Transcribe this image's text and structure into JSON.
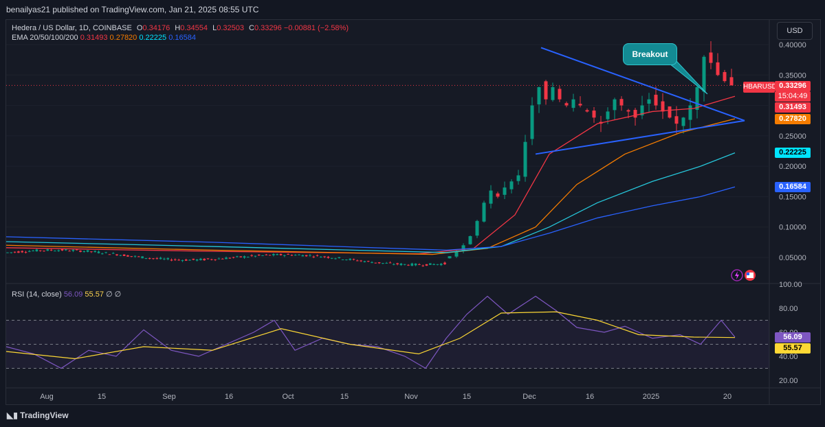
{
  "header": {
    "publisher": "benailyas21 published on TradingView.com, Jan 21, 2025 08:55 UTC"
  },
  "legend": {
    "symbol": "Hedera / US Dollar, 1D, COINBASE",
    "o_label": "O",
    "o_value": "0.34176",
    "h_label": "H",
    "h_value": "0.34554",
    "l_label": "L",
    "l_value": "0.32503",
    "c_label": "C",
    "c_value": "0.33296",
    "change": "−0.00881 (−2.58%)",
    "ema_label": "EMA 20/50/100/200",
    "ema20": "0.31493",
    "ema50": "0.27820",
    "ema100": "0.22225",
    "ema200": "0.16584"
  },
  "currency": "USD",
  "ticker": "HBARUSD",
  "price_tags": {
    "last": "0.33296",
    "countdown": "15:04:49",
    "ema20": "0.31493",
    "ema50": "0.27820",
    "ema100": "0.22225",
    "ema200": "0.16584",
    "rsi": "56.09",
    "rsi_ma": "55.57"
  },
  "annotation": {
    "breakout": "Breakout"
  },
  "rsi": {
    "label": "RSI (14, close)",
    "value": "56.09",
    "ma": "55.57",
    "z1": "∅",
    "z2": "∅"
  },
  "footer": {
    "logo": "TradingView"
  },
  "colors": {
    "up": "#089981",
    "down": "#f23645",
    "ema20": "#f23645",
    "ema50": "#f57c00",
    "ema100": "#26c6da",
    "ema200": "#2962ff",
    "rsi": "#7e57c2",
    "rsi_ma": "#fdd835",
    "trend": "#2962ff"
  },
  "chart_data": {
    "type": "candlestick",
    "title": "Hedera / US Dollar, 1D, COINBASE",
    "y_ticks": [
      "0.40000",
      "0.35000",
      "0.30000",
      "0.25000",
      "0.20000",
      "0.15000",
      "0.10000",
      "0.05000"
    ],
    "x_ticks": [
      "Aug",
      "15",
      "Sep",
      "16",
      "Oct",
      "15",
      "Nov",
      "15",
      "Dec",
      "16",
      "2025",
      "20"
    ],
    "ylim": [
      0.0,
      0.42
    ],
    "close_series": [
      0.066,
      0.064,
      0.063,
      0.061,
      0.059,
      0.058,
      0.057,
      0.055,
      0.054,
      0.053,
      0.052,
      0.052,
      0.051,
      0.051,
      0.052,
      0.053,
      0.054,
      0.055,
      0.056,
      0.057,
      0.058,
      0.058,
      0.057,
      0.056,
      0.055,
      0.054,
      0.053,
      0.053,
      0.052,
      0.051,
      0.05,
      0.05,
      0.051,
      0.052,
      0.053,
      0.054,
      0.055,
      0.055,
      0.054,
      0.053,
      0.052,
      0.052,
      0.051,
      0.051,
      0.05,
      0.05,
      0.049,
      0.049,
      0.048,
      0.048,
      0.047,
      0.047,
      0.048,
      0.052,
      0.06,
      0.07,
      0.085,
      0.11,
      0.14,
      0.16,
      0.15,
      0.165,
      0.175,
      0.185,
      0.24,
      0.3,
      0.33,
      0.31,
      0.33,
      0.31,
      0.3,
      0.31,
      0.3,
      0.29,
      0.28,
      0.27,
      0.29,
      0.31,
      0.3,
      0.29,
      0.28,
      0.3,
      0.31,
      0.3,
      0.29,
      0.28,
      0.27,
      0.28,
      0.3,
      0.33,
      0.38,
      0.37,
      0.35,
      0.34,
      0.333
    ],
    "trendlines": [
      {
        "from": [
          "Dec 4",
          0.395
        ],
        "to": [
          "Jan 22",
          0.275
        ]
      },
      {
        "from": [
          "Dec 3",
          0.22
        ],
        "to": [
          "Jan 22",
          0.275
        ]
      }
    ],
    "rsi": {
      "ylim": [
        20,
        100
      ],
      "y_ticks": [
        "100.00",
        "80.00",
        "60.00",
        "40.00",
        "20.00"
      ],
      "band": [
        30,
        70
      ]
    }
  }
}
